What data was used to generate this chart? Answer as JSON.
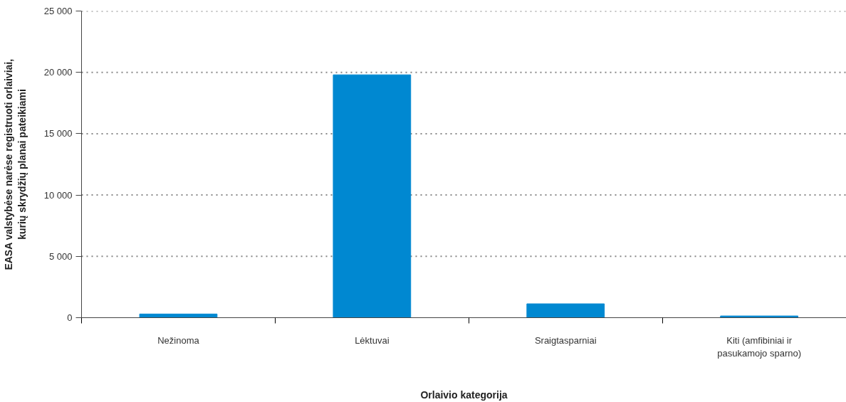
{
  "chart_data": {
    "type": "bar",
    "xlabel": "Orlaivio kategorija",
    "ylabel": "EASA valstybėse narėse registruoti orlaiviai, kurių skrydžių planai pateikiami",
    "categories": [
      "Nežinoma",
      "Lėktuvai",
      "Sraigtasparniai",
      "Kiti (amfibiniai ir pasukamojo sparno)"
    ],
    "values": [
      300,
      19800,
      1130,
      140
    ],
    "color": "#0088d1",
    "ylim": [
      0,
      25000
    ],
    "yticks": [
      0,
      {
        "value": 5000,
        "label": "5 000"
      },
      {
        "value": 10000,
        "label": "10 000"
      },
      {
        "value": 15000,
        "label": "15 000"
      },
      {
        "value": 20000,
        "label": "20 000"
      },
      {
        "value": 25000,
        "label": "25 000"
      }
    ],
    "grid": "y"
  }
}
